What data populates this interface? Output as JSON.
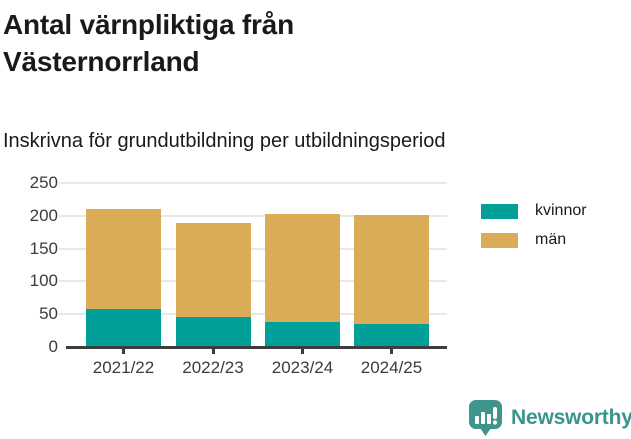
{
  "header": {
    "title": "Antal värnpliktiga från Västernorrland",
    "subtitle": "Inskrivna för grundutbildning per utbildningsperiod"
  },
  "chart_data": {
    "type": "bar",
    "stacked": true,
    "title": "Antal värnpliktiga från Västernorrland",
    "subtitle": "Inskrivna för grundutbildning per utbildningsperiod",
    "categories": [
      "2021/22",
      "2022/23",
      "2023/24",
      "2024/25"
    ],
    "series": [
      {
        "name": "kvinnor",
        "color": "#00a099",
        "values": [
          58,
          45,
          38,
          35
        ]
      },
      {
        "name": "män",
        "color": "#dbac58",
        "values": [
          152,
          144,
          164,
          166
        ]
      }
    ],
    "xlabel": "",
    "ylabel": "",
    "ylim": [
      0,
      250
    ],
    "yticks": [
      0,
      50,
      100,
      150,
      200,
      250
    ],
    "grid": "horizontal",
    "legend_position": "right"
  },
  "legend": {
    "items": [
      {
        "label": "kvinnor",
        "color": "#00a099"
      },
      {
        "label": "män",
        "color": "#dbac58"
      }
    ]
  },
  "footer": {
    "brand": "Newsworthy",
    "brand_color": "#3a948e",
    "logo_icon": "bar-chart-speech-bubble-icon"
  },
  "colors": {
    "kvinnor": "#00a099",
    "man": "#dbac58",
    "text_dark": "#1a1a1a",
    "axis_text": "#3c3c3c",
    "axis_line": "#3d3d3d",
    "gridline": "#e8e8e8",
    "brand_teal": "#3a948e"
  }
}
